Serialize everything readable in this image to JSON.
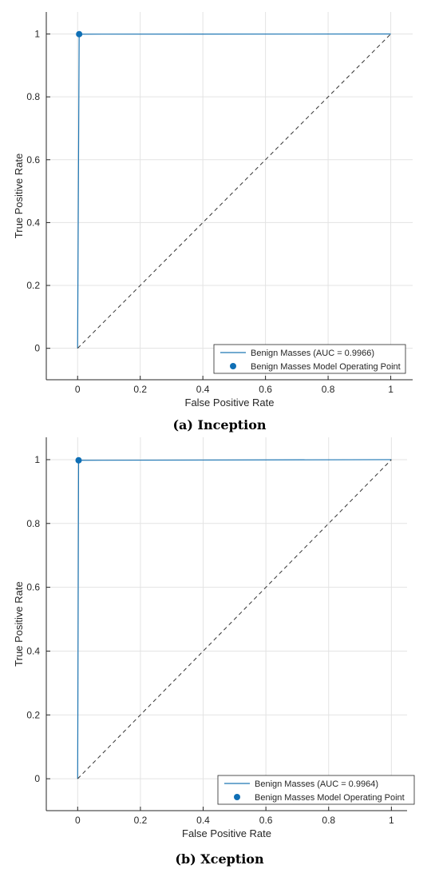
{
  "chart_data": [
    {
      "type": "line",
      "caption": "(a) Inception",
      "xlabel": "False Positive Rate",
      "ylabel": "True Positive Rate",
      "xlim": [
        -0.1,
        1.07
      ],
      "ylim": [
        -0.1,
        1.07
      ],
      "xticks": [
        0,
        0.2,
        0.4,
        0.6,
        0.8,
        1
      ],
      "yticks": [
        0,
        0.2,
        0.4,
        0.6,
        0.8,
        1
      ],
      "xtick_labels": [
        "0",
        "0.2",
        "0.4",
        "0.6",
        "0.8",
        "1"
      ],
      "ytick_labels": [
        "0",
        "0.2",
        "0.4",
        "0.6",
        "0.8",
        "1"
      ],
      "grid": true,
      "legend_position": "bottom-right",
      "colors": {
        "roc": "#1f77b4",
        "diagonal": "#333333",
        "point": "#0f6fb5"
      },
      "series": [
        {
          "name": "Benign Masses (AUC = 0.9966)",
          "kind": "line",
          "x": [
            0,
            0.005,
            1
          ],
          "y": [
            0,
            0.9995,
            1
          ]
        },
        {
          "name": "Benign Masses Model Operating Point",
          "kind": "marker",
          "x": [
            0.005
          ],
          "y": [
            0.9995
          ]
        },
        {
          "kind": "reference",
          "style": "dashed",
          "x": [
            0,
            1
          ],
          "y": [
            0,
            1
          ]
        }
      ]
    },
    {
      "type": "line",
      "caption": "(b) Xception",
      "xlabel": "False Positive Rate",
      "ylabel": "True Positive Rate",
      "xlim": [
        -0.1,
        1.05
      ],
      "ylim": [
        -0.1,
        1.07
      ],
      "xticks": [
        0,
        0.2,
        0.4,
        0.6,
        0.8,
        1
      ],
      "yticks": [
        0,
        0.2,
        0.4,
        0.6,
        0.8,
        1
      ],
      "xtick_labels": [
        "0",
        "0.2",
        "0.4",
        "0.6",
        "0.8",
        "1"
      ],
      "ytick_labels": [
        "0",
        "0.2",
        "0.4",
        "0.6",
        "0.8",
        "1"
      ],
      "grid": true,
      "legend_position": "bottom-right",
      "colors": {
        "roc": "#1f77b4",
        "diagonal": "#333333",
        "point": "#0f6fb5"
      },
      "series": [
        {
          "name": "Benign Masses (AUC = 0.9964)",
          "kind": "line",
          "x": [
            0,
            0.003,
            1
          ],
          "y": [
            0,
            0.998,
            1
          ]
        },
        {
          "name": "Benign Masses Model Operating Point",
          "kind": "marker",
          "x": [
            0.003
          ],
          "y": [
            0.998
          ]
        },
        {
          "kind": "reference",
          "style": "dashed",
          "x": [
            0,
            1
          ],
          "y": [
            0,
            1
          ]
        }
      ]
    }
  ]
}
